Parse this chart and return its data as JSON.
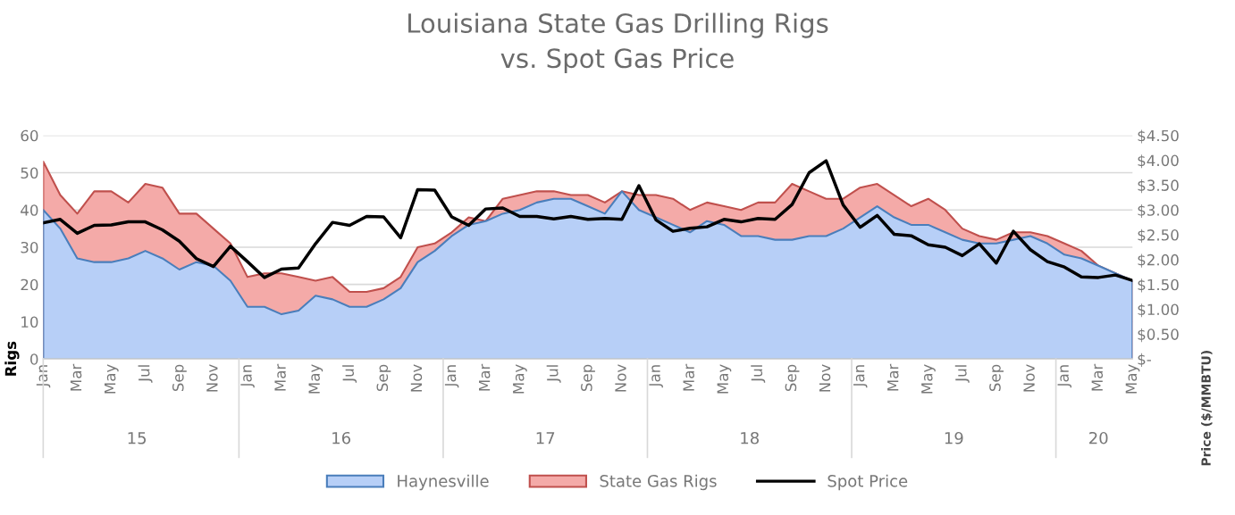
{
  "chart_data": {
    "type": "area",
    "title": "Louisiana State Gas Drilling Rigs\nvs. Spot Gas Price",
    "ylabel": "Rigs",
    "y2label": "Price ($/MMBTU)",
    "categories": [
      "Jan",
      null,
      "Mar",
      null,
      "May",
      null,
      "Jul",
      null,
      "Sep",
      null,
      "Nov",
      null,
      "Jan",
      null,
      "Mar",
      null,
      "May",
      null,
      "Jul",
      null,
      "Sep",
      null,
      "Nov",
      null,
      "Jan",
      null,
      "Mar",
      null,
      "May",
      null,
      "Jul",
      null,
      "Sep",
      null,
      "Nov",
      null,
      "Jan",
      null,
      "Mar",
      null,
      "May",
      null,
      "Jul",
      null,
      "Sep",
      null,
      "Nov",
      null,
      "Jan",
      null,
      "Mar",
      null,
      "May",
      null,
      "Jul",
      null,
      "Sep",
      null,
      "Nov",
      null,
      "Jan",
      null,
      "Mar",
      null,
      "May"
    ],
    "annotations": [
      "15",
      "16",
      "17",
      "18",
      "19",
      "20"
    ],
    "series": [
      {
        "name": "Haynesville",
        "color": "#b7cff7",
        "values": [
          40,
          35,
          27,
          26,
          26,
          27,
          29,
          27,
          24,
          26,
          25,
          21,
          14,
          14,
          12,
          13,
          17,
          16,
          14,
          14,
          16,
          19,
          26,
          29,
          33,
          36,
          37,
          39,
          40,
          42,
          43,
          43,
          41,
          39,
          45,
          40,
          38,
          36,
          34,
          37,
          36,
          33,
          33,
          32,
          32,
          33,
          33,
          35,
          38,
          41,
          38,
          36,
          36,
          34,
          32,
          31,
          31,
          32,
          33,
          31,
          28,
          27,
          25,
          23,
          21
        ]
      },
      {
        "name": "State Gas Rigs",
        "color": "#f4aaa8",
        "values": [
          53,
          44,
          39,
          45,
          45,
          42,
          47,
          46,
          39,
          39,
          35,
          31,
          22,
          23,
          23,
          22,
          21,
          22,
          18,
          18,
          19,
          22,
          30,
          31,
          34,
          38,
          37,
          43,
          44,
          45,
          45,
          44,
          44,
          42,
          45,
          44,
          44,
          43,
          40,
          42,
          41,
          40,
          42,
          42,
          47,
          45,
          43,
          43,
          46,
          47,
          44,
          41,
          43,
          40,
          35,
          33,
          32,
          34,
          34,
          33,
          31,
          29,
          25,
          23,
          21
        ]
      },
      {
        "name": "Spot Price",
        "type": "line",
        "axis": "y2",
        "color": "#000000",
        "values": [
          2.74,
          2.81,
          2.53,
          2.69,
          2.7,
          2.76,
          2.76,
          2.6,
          2.37,
          2.02,
          1.86,
          2.27,
          1.96,
          1.64,
          1.81,
          1.83,
          2.32,
          2.75,
          2.69,
          2.87,
          2.86,
          2.44,
          3.41,
          3.4,
          2.86,
          2.69,
          3.02,
          3.04,
          2.87,
          2.87,
          2.82,
          2.87,
          2.81,
          2.83,
          2.81,
          3.49,
          2.8,
          2.57,
          2.63,
          2.66,
          2.81,
          2.76,
          2.83,
          2.81,
          3.11,
          3.75,
          3.99,
          3.1,
          2.65,
          2.89,
          2.51,
          2.48,
          2.3,
          2.25,
          2.08,
          2.32,
          1.93,
          2.57,
          2.2,
          1.96,
          1.85,
          1.65,
          1.64,
          1.69,
          1.58
        ]
      }
    ],
    "ylim": [
      0,
      60
    ],
    "yticks": [
      0,
      10,
      20,
      30,
      40,
      50,
      60
    ],
    "y2lim": [
      0,
      4.5
    ],
    "y2ticks": [
      {
        "value": 0,
        "label": "$-"
      },
      {
        "value": 0.5,
        "label": "$0.50"
      },
      {
        "value": 1,
        "label": "$1.00"
      },
      {
        "value": 1.5,
        "label": "$1.50"
      },
      {
        "value": 2,
        "label": "$2.00"
      },
      {
        "value": 2.5,
        "label": "$2.50"
      },
      {
        "value": 3,
        "label": "$3.00"
      },
      {
        "value": 3.5,
        "label": "$3.50"
      },
      {
        "value": 4,
        "label": "$4.00"
      },
      {
        "value": 4.5,
        "label": "$4.50"
      }
    ],
    "grid": "y",
    "legend": "bottom",
    "line_style": "solid",
    "marker": "none"
  }
}
